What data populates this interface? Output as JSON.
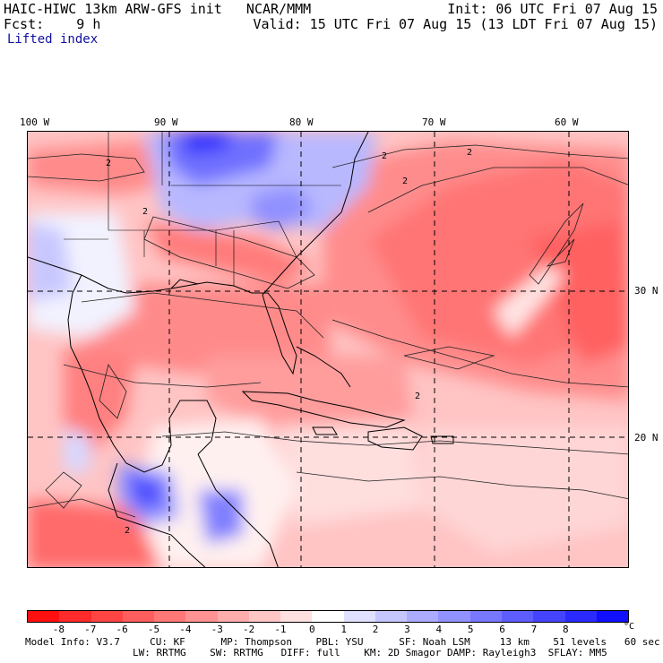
{
  "header": {
    "title": "HAIC-HIWC 13km ARW-GFS init   NCAR/MMM",
    "init": "Init: 06 UTC Fri 07 Aug 15",
    "fcst": "Fcst:    9 h",
    "valid": "Valid: 15 UTC Fri 07 Aug 15 (13 LDT Fri 07 Aug 15)",
    "variable": "Lifted index"
  },
  "map": {
    "lon_labels": [
      "100 W",
      "90 W",
      "80 W",
      "70 W",
      "60 W"
    ],
    "lat_labels": [
      "30 N",
      "20 N"
    ],
    "contour_label": "2"
  },
  "colorbar": {
    "colors": [
      "#ff1010",
      "#ff2a2a",
      "#ff4444",
      "#ff5e5e",
      "#ff7878",
      "#ff9292",
      "#ffacac",
      "#ffc6c6",
      "#ffe0e0",
      "#ffffff",
      "#e0e0ff",
      "#c6c6ff",
      "#acacff",
      "#9292ff",
      "#7878ff",
      "#5e5eff",
      "#4444ff",
      "#2a2aff",
      "#1010ff"
    ],
    "tick_labels": [
      "-8",
      "-7",
      "-6",
      "-5",
      "-4",
      "-3",
      "-2",
      "-1",
      "0",
      "1",
      "2",
      "3",
      "4",
      "5",
      "6",
      "7",
      "8"
    ],
    "unit": "°C"
  },
  "model_info": {
    "line1": "Model Info: V3.7     CU: KF      MP: Thompson    PBL: YSU      SF: Noah LSM     13 km    51 levels   60 sec",
    "line2": "LW: RRTMG    SW: RRTMG   DIFF: full    KM: 2D Smagor DAMP: Rayleigh3  SFLAY: MM5"
  }
}
